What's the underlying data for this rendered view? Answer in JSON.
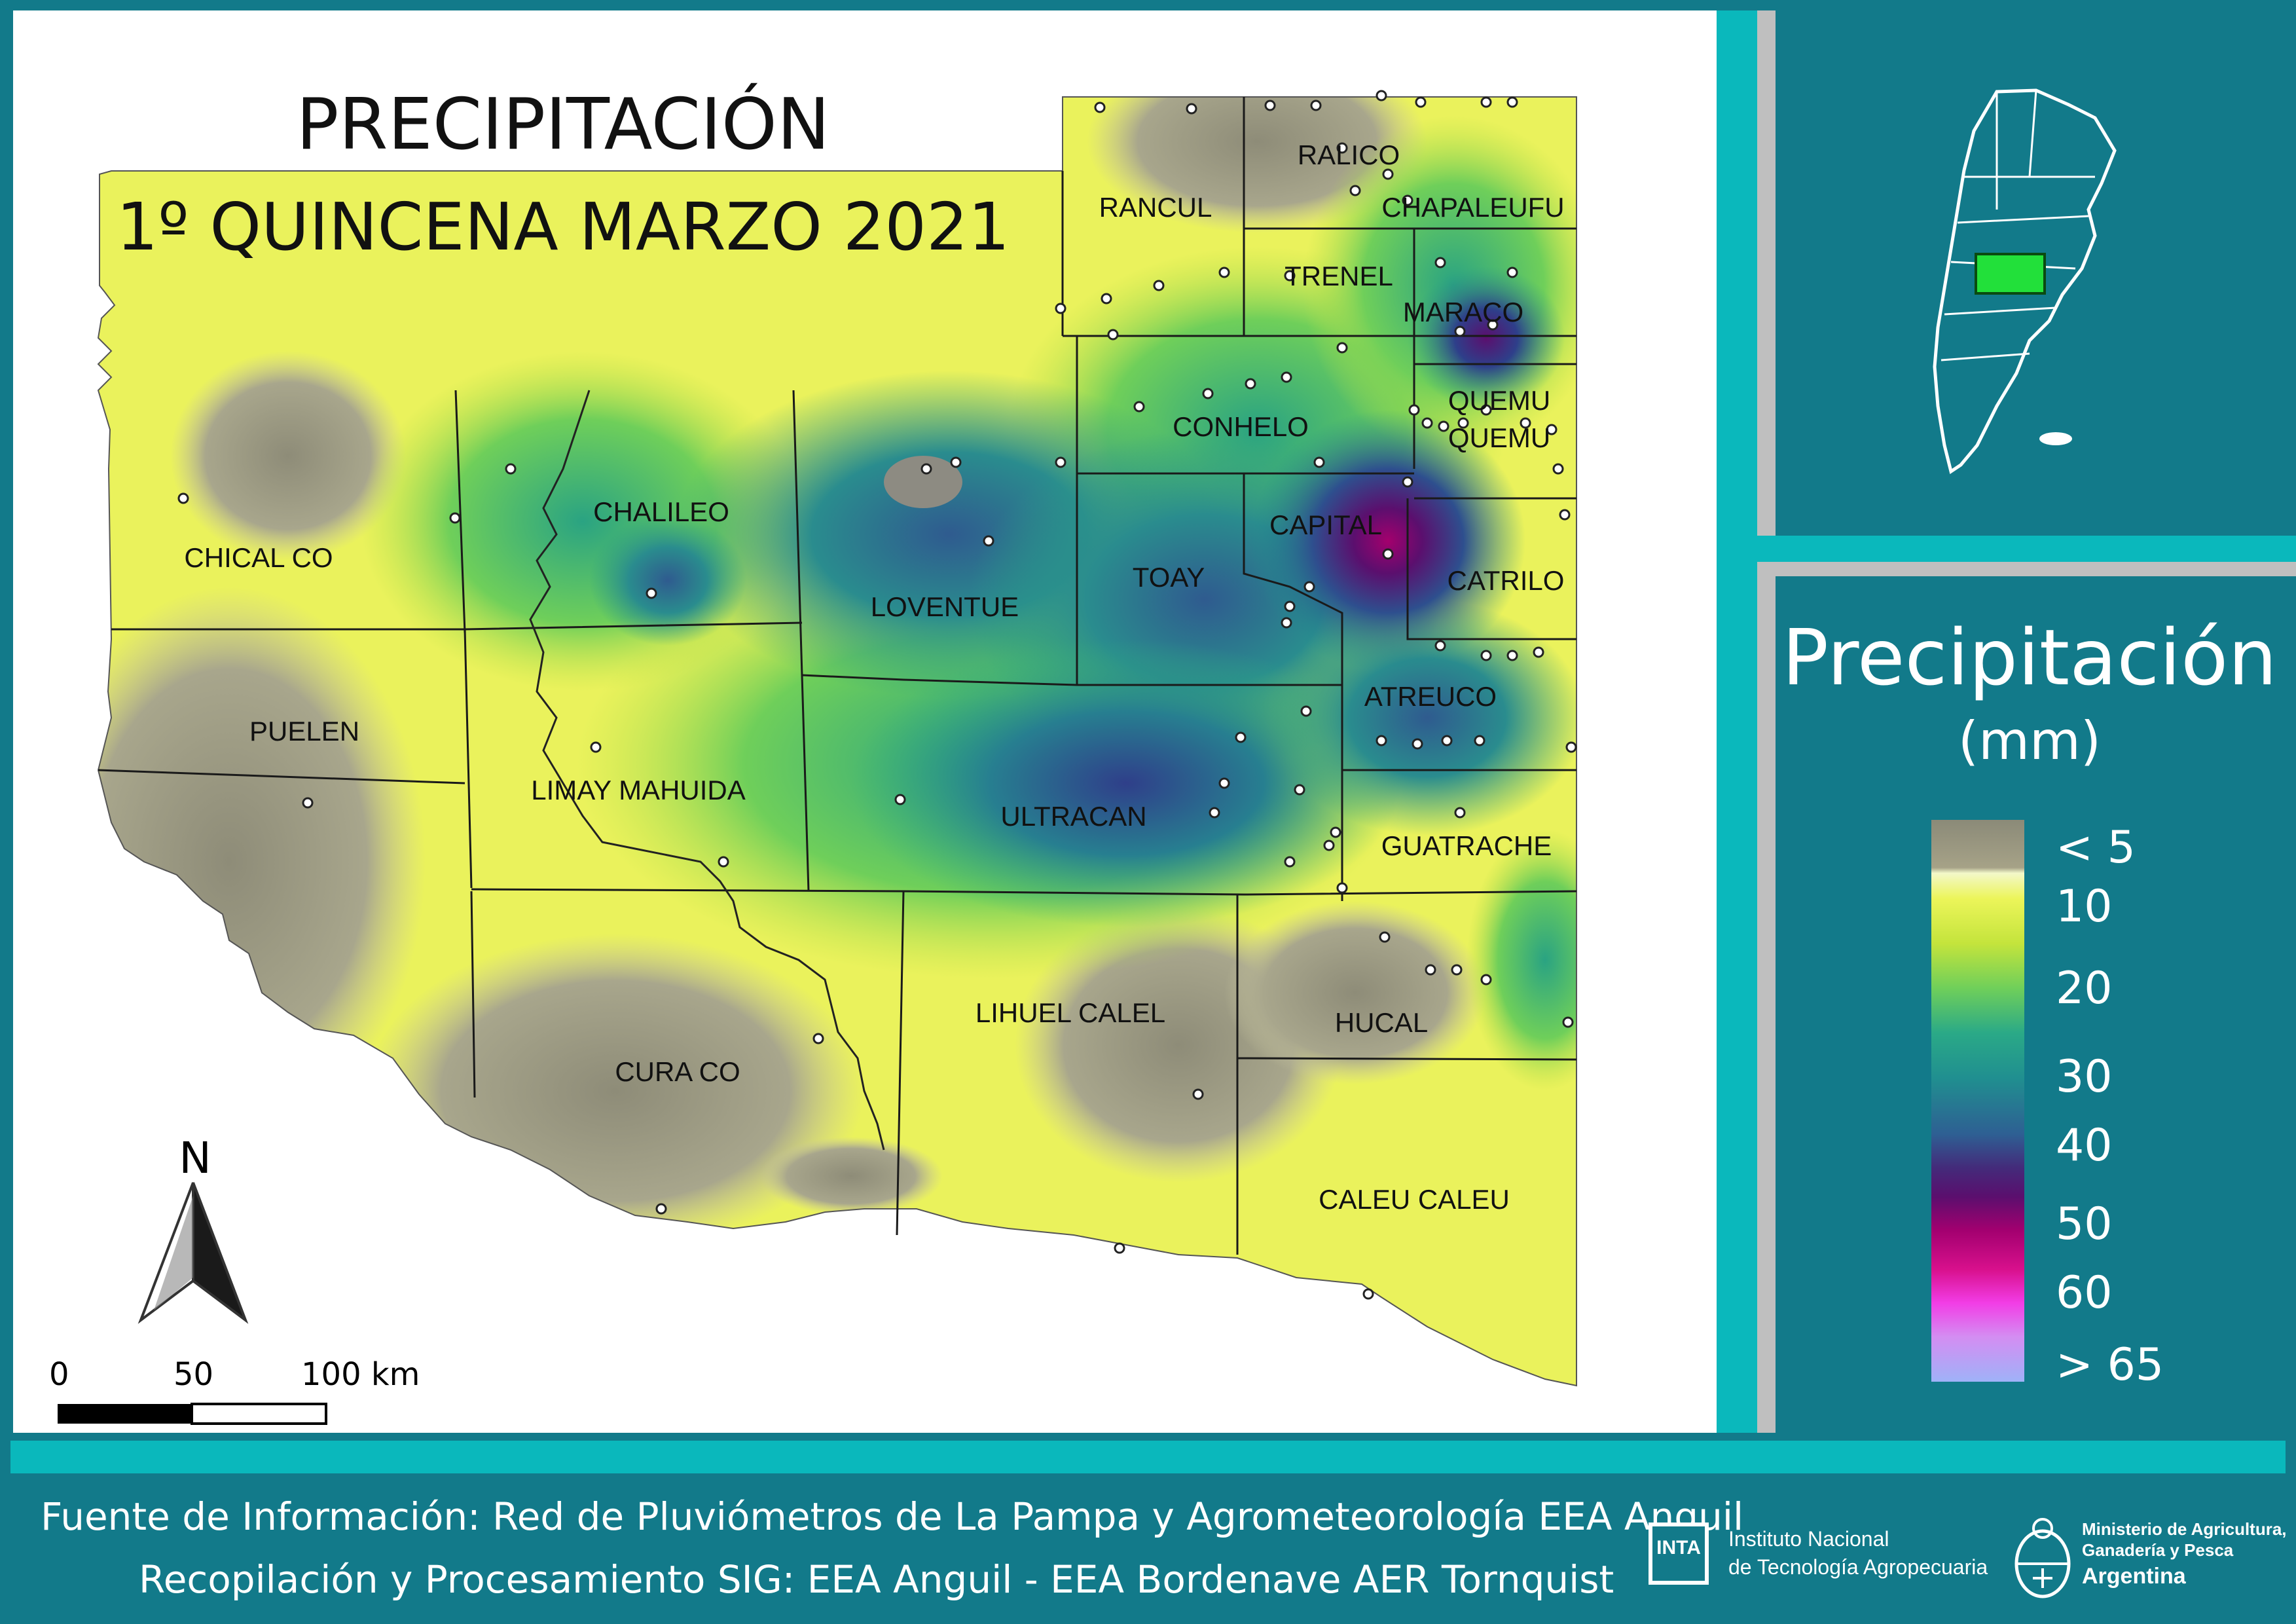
{
  "title": {
    "line1": "PRECIPITACIÓN",
    "line2": "1º QUINCENA MARZO 2021"
  },
  "legend": {
    "title": "Precipitación",
    "unit": "(mm)",
    "labels": [
      "< 5",
      "10",
      "20",
      "30",
      "40",
      "50",
      "60",
      "> 65"
    ],
    "colors": [
      "#8b8a78",
      "#ecf55a",
      "#6fcf5a",
      "#208f90",
      "#442a7a",
      "#a2006f",
      "#f23de6",
      "#9fb2f8"
    ]
  },
  "departments": [
    "RALICO",
    "RANCUL",
    "CHAPALEUFU",
    "TRENEL",
    "MARACO",
    "QUEMU",
    "QUEMU",
    "CONHELO",
    "CHALILEO",
    "CHICAL CO",
    "CAPITAL",
    "LOVENTUE",
    "TOAY",
    "CATRILO",
    "ATREUCO",
    "PUELEN",
    "LIMAY MAHUIDA",
    "ULTRACAN",
    "GUATRACHE",
    "LIHUEL CALEL",
    "HUCAL",
    "CURA CO",
    "CALEU CALEU"
  ],
  "north_label": "N",
  "scale": {
    "labels": [
      "0",
      "50",
      "100 km"
    ]
  },
  "footer": {
    "source": "Fuente de Información: Red de Pluviómetros de La Pampa y Agrometeorología EEA Anguil",
    "processing": "Recopilación y Procesamiento SIG: EEA Anguil - EEA Bordenave AER Tornquist"
  },
  "logos": {
    "inta_mark": "INTA",
    "inta_line1": "Instituto Nacional",
    "inta_line2": "de Tecnología Agropecuaria",
    "ministry_line1": "Ministerio de Agricultura,",
    "ministry_line2": "Ganadería y Pesca",
    "ministry_line3": "Argentina"
  }
}
